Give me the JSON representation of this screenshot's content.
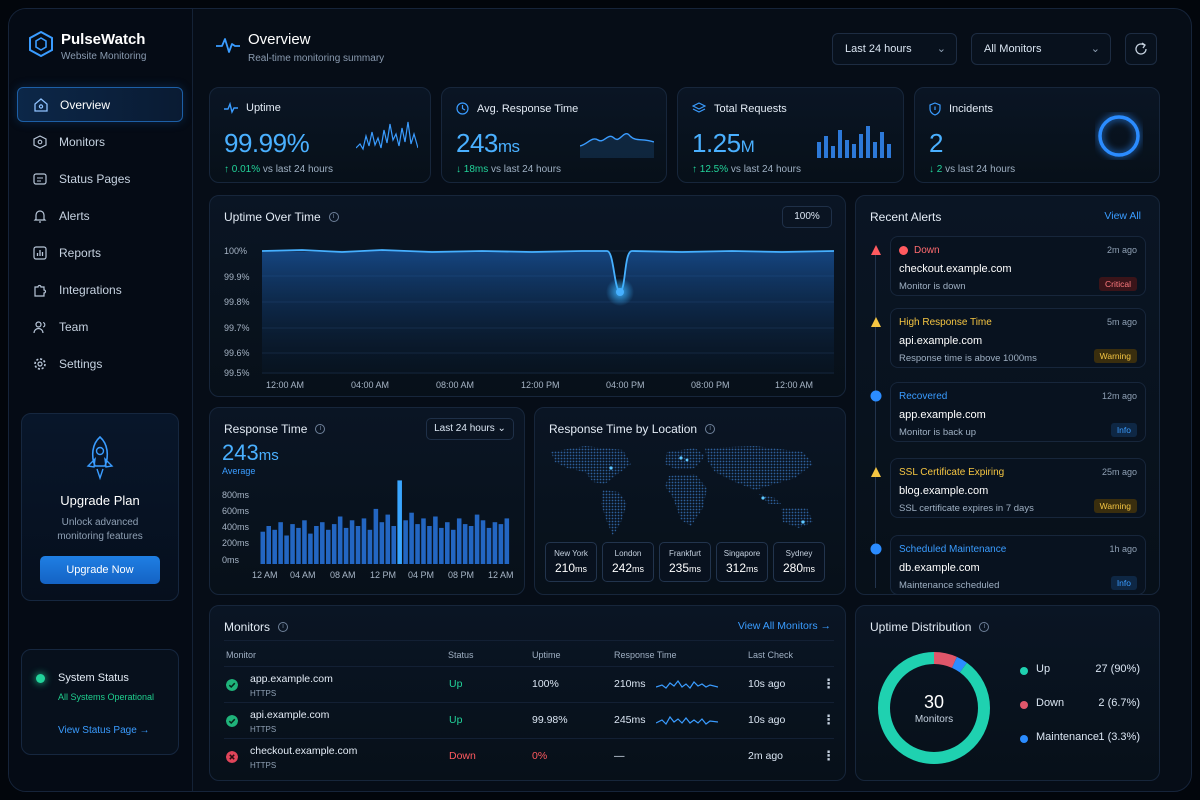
{
  "brand": {
    "name": "PulseWatch",
    "subtitle": "Website Monitoring"
  },
  "nav": [
    {
      "label": "Overview",
      "icon": "home-icon",
      "active": true
    },
    {
      "label": "Monitors",
      "icon": "monitor-icon"
    },
    {
      "label": "Status Pages",
      "icon": "status-page-icon"
    },
    {
      "label": "Alerts",
      "icon": "bell-icon"
    },
    {
      "label": "Reports",
      "icon": "chart-icon"
    },
    {
      "label": "Integrations",
      "icon": "puzzle-icon"
    },
    {
      "label": "Team",
      "icon": "team-icon"
    },
    {
      "label": "Settings",
      "icon": "gear-icon"
    }
  ],
  "upgrade": {
    "title": "Upgrade Plan",
    "subtitle": "Unlock advanced monitoring features",
    "button": "Upgrade Now"
  },
  "system_status": {
    "title": "System Status",
    "subtitle": "All Systems Operational",
    "link": "View Status Page"
  },
  "header": {
    "title": "Overview",
    "subtitle": "Real-time monitoring summary",
    "range": "Last 24 hours",
    "filter": "All Monitors"
  },
  "stats": [
    {
      "label": "Uptime",
      "value": "99.99%",
      "unit": "",
      "trend_value": "0.01%",
      "trend_text": "vs last 24 hours",
      "trend_dir": "up"
    },
    {
      "label": "Avg. Response Time",
      "value": "243",
      "unit": "ms",
      "trend_value": "18ms",
      "trend_text": "vs last 24 hours",
      "trend_dir": "down"
    },
    {
      "label": "Total Requests",
      "value": "1.25",
      "unit": "M",
      "trend_value": "12.5%",
      "trend_text": "vs last 24 hours",
      "trend_dir": "up"
    },
    {
      "label": "Incidents",
      "value": "2",
      "unit": "",
      "trend_value": "2",
      "trend_text": "vs last 24 hours",
      "trend_dir": "down"
    }
  ],
  "uptime_chart": {
    "title": "Uptime Over Time",
    "badge": "100%",
    "y_ticks": [
      "100%",
      "99.9%",
      "99.8%",
      "99.7%",
      "99.6%",
      "99.5%"
    ],
    "x_ticks": [
      "12:00 AM",
      "04:00 AM",
      "08:00 AM",
      "12:00 PM",
      "04:00 PM",
      "08:00 PM",
      "12:00 AM"
    ]
  },
  "response_chart": {
    "title": "Response Time",
    "range": "Last 24 hours",
    "value": "243",
    "unit": "ms",
    "caption": "Average",
    "y_ticks": [
      "800ms",
      "600ms",
      "400ms",
      "200ms",
      "0ms"
    ],
    "x_ticks": [
      "12 AM",
      "04 AM",
      "08 AM",
      "12 PM",
      "04 PM",
      "08 PM",
      "12 AM"
    ]
  },
  "location": {
    "title": "Response Time by Location",
    "cities": [
      {
        "city": "New York",
        "value": "210",
        "unit": "ms"
      },
      {
        "city": "London",
        "value": "242",
        "unit": "ms"
      },
      {
        "city": "Frankfurt",
        "value": "235",
        "unit": "ms"
      },
      {
        "city": "Singapore",
        "value": "312",
        "unit": "ms"
      },
      {
        "city": "Sydney",
        "value": "280",
        "unit": "ms"
      }
    ]
  },
  "alerts": {
    "title": "Recent Alerts",
    "view_all": "View All",
    "items": [
      {
        "type": "Down",
        "time": "2m ago",
        "host": "checkout.example.com",
        "message": "Monitor is down",
        "badge": "Critical",
        "color": "#ff5a5f"
      },
      {
        "type": "High Response Time",
        "time": "5m ago",
        "host": "api.example.com",
        "message": "Response time is above 1000ms",
        "badge": "Warning",
        "color": "#f5c542"
      },
      {
        "type": "Recovered",
        "time": "12m ago",
        "host": "app.example.com",
        "message": "Monitor is back up",
        "badge": "Info",
        "color": "#3a9cff"
      },
      {
        "type": "SSL Certificate Expiring",
        "time": "25m ago",
        "host": "blog.example.com",
        "message": "SSL certificate expires in 7 days",
        "badge": "Warning",
        "color": "#f5c542"
      },
      {
        "type": "Scheduled Maintenance",
        "time": "1h ago",
        "host": "db.example.com",
        "message": "Maintenance scheduled",
        "badge": "Info",
        "color": "#3a9cff"
      }
    ]
  },
  "monitors": {
    "title": "Monitors",
    "view_all": "View All Monitors",
    "columns": [
      "Monitor",
      "Status",
      "Uptime",
      "Response Time",
      "Last Check"
    ],
    "rows": [
      {
        "name": "app.example.com",
        "protocol": "HTTPS",
        "status": "Up",
        "uptime": "100%",
        "response": "210ms",
        "last_check": "10s ago"
      },
      {
        "name": "api.example.com",
        "protocol": "HTTPS",
        "status": "Up",
        "uptime": "99.98%",
        "response": "245ms",
        "last_check": "10s ago"
      },
      {
        "name": "checkout.example.com",
        "protocol": "HTTPS",
        "status": "Down",
        "uptime": "0%",
        "response": "—",
        "last_check": "2m ago"
      }
    ]
  },
  "distribution": {
    "title": "Uptime Distribution",
    "total": "30",
    "total_label": "Monitors",
    "segments": [
      {
        "label": "Up",
        "value": "27 (90%)",
        "fraction": 0.9,
        "color": "#1fd1b0"
      },
      {
        "label": "Down",
        "value": "2 (6.7%)",
        "fraction": 0.067,
        "color": "#e0566a"
      },
      {
        "label": "Maintenance",
        "value": "1 (3.3%)",
        "fraction": 0.033,
        "color": "#2b8cff"
      }
    ]
  }
}
